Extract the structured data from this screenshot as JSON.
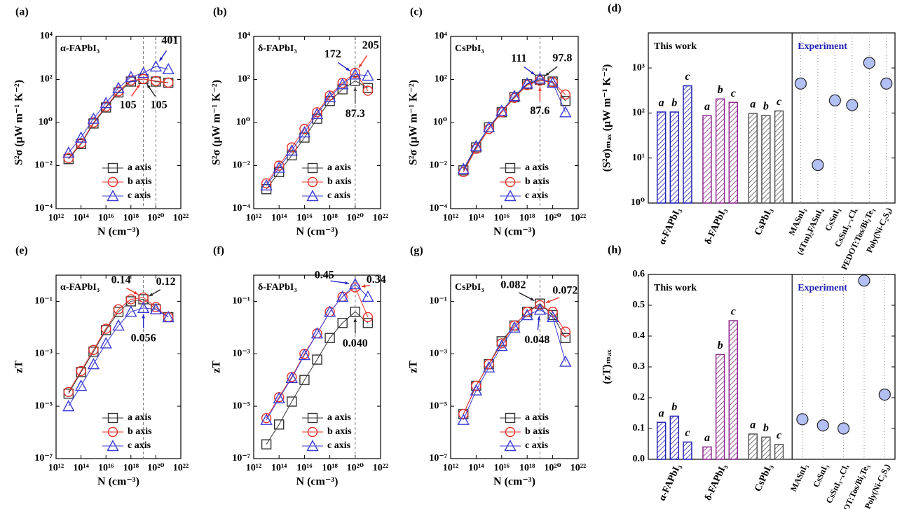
{
  "chart_data": [
    {
      "type": "line",
      "panel": "(a)",
      "label": "α-FAPbI₃",
      "xlabel": "N (cm⁻³)",
      "ylabel": "S²σ (μW m⁻¹ K⁻²)",
      "log_x": true,
      "log_y": true,
      "xlim": [
        1000000000000.0,
        1e+22
      ],
      "xticks": [
        {
          "value": 1000000000000.0,
          "label": "10¹²"
        },
        {
          "value": 100000000000000.0,
          "label": "10¹⁴"
        },
        {
          "value": 1e+16,
          "label": "10¹⁶"
        },
        {
          "value": 1e+18,
          "label": "10¹⁸"
        },
        {
          "value": 1e+20,
          "label": "10²⁰"
        },
        {
          "value": 1e+22,
          "label": "10²²"
        }
      ],
      "ylim": [
        0.0001,
        10000.0
      ],
      "yticks": [
        {
          "value": 0.0001,
          "label": "10⁻⁴"
        },
        {
          "value": 0.01,
          "label": "10⁻²"
        },
        {
          "value": 1,
          "label": "10⁰"
        },
        {
          "value": 100,
          "label": "10²"
        },
        {
          "value": 10000.0,
          "label": "10⁴"
        }
      ],
      "x": [
        10000000000000.0,
        100000000000000.0,
        1000000000000000.0,
        1e+16,
        1e+17,
        1e+18,
        1e+19,
        1e+20,
        1e+21
      ],
      "series": [
        {
          "name": "a axis",
          "color": "#333333",
          "marker": "square",
          "values": [
            0.02,
            0.1,
            0.9,
            5,
            25,
            80,
            105,
            80,
            70
          ]
        },
        {
          "name": "b axis",
          "color": "#e8322a",
          "marker": "circle",
          "values": [
            0.022,
            0.11,
            1.0,
            5.5,
            28,
            90,
            105,
            85,
            72
          ]
        },
        {
          "name": "c axis",
          "color": "#3b3bd6",
          "marker": "triangle",
          "values": [
            0.04,
            0.2,
            1.5,
            8,
            40,
            130,
            200,
            401,
            300
          ]
        }
      ],
      "vlines": [
        1e+19,
        1e+20
      ],
      "legend": "lower right",
      "annotations": [
        {
          "label": "105",
          "series": 1,
          "index": 6,
          "color": "#e8322a"
        },
        {
          "label": "105",
          "series": 0,
          "index": 6,
          "color": "#222222"
        },
        {
          "label": "401",
          "series": 2,
          "index": 7,
          "color": "#2525c8"
        }
      ]
    },
    {
      "type": "line",
      "panel": "(b)",
      "label": "δ-FAPbI₃",
      "xlabel": "N (cm⁻³)",
      "ylabel": "S²σ (μW m⁻¹ K⁻²)",
      "log_x": true,
      "log_y": true,
      "xlim": [
        1000000000000.0,
        1e+22
      ],
      "xticks": [
        {
          "value": 1000000000000.0,
          "label": "10¹²"
        },
        {
          "value": 100000000000000.0,
          "label": "10¹⁴"
        },
        {
          "value": 1e+16,
          "label": "10¹⁶"
        },
        {
          "value": 1e+18,
          "label": "10¹⁸"
        },
        {
          "value": 1e+20,
          "label": "10²⁰"
        },
        {
          "value": 1e+22,
          "label": "10²²"
        }
      ],
      "ylim": [
        0.0001,
        10000.0
      ],
      "yticks": [
        {
          "value": 0.0001,
          "label": "10⁻⁴"
        },
        {
          "value": 0.01,
          "label": "10⁻²"
        },
        {
          "value": 1,
          "label": "10⁰"
        },
        {
          "value": 100,
          "label": "10²"
        },
        {
          "value": 10000.0,
          "label": "10⁴"
        }
      ],
      "x": [
        10000000000000.0,
        100000000000000.0,
        1000000000000000.0,
        1e+16,
        1e+17,
        1e+18,
        1e+19,
        1e+20,
        1e+21
      ],
      "series": [
        {
          "name": "a axis",
          "color": "#333333",
          "marker": "square",
          "values": [
            0.0008,
            0.005,
            0.03,
            0.2,
            1.5,
            10,
            35,
            87.3,
            40
          ]
        },
        {
          "name": "b axis",
          "color": "#e8322a",
          "marker": "circle",
          "values": [
            0.0015,
            0.01,
            0.07,
            0.5,
            3,
            18,
            70,
            205,
            30
          ]
        },
        {
          "name": "c axis",
          "color": "#3b3bd6",
          "marker": "triangle",
          "values": [
            0.0012,
            0.008,
            0.05,
            0.35,
            2.5,
            15,
            60,
            172,
            150
          ]
        }
      ],
      "vlines": [
        1e+20
      ],
      "legend": "lower right",
      "annotations": [
        {
          "label": "172",
          "series": 2,
          "index": 7,
          "color": "#2525c8"
        },
        {
          "label": "205",
          "series": 1,
          "index": 7,
          "color": "#e8322a"
        },
        {
          "label": "87.3",
          "series": 0,
          "index": 7,
          "color": "#444444"
        }
      ]
    },
    {
      "type": "line",
      "panel": "(c)",
      "label": "CsPbI₃",
      "xlabel": "N (cm⁻³)",
      "ylabel": "S²σ (μW m⁻¹ K⁻²)",
      "log_x": true,
      "log_y": true,
      "xlim": [
        1000000000000.0,
        1e+22
      ],
      "xticks": [
        {
          "value": 1000000000000.0,
          "label": "10¹²"
        },
        {
          "value": 100000000000000.0,
          "label": "10¹⁴"
        },
        {
          "value": 1e+16,
          "label": "10¹⁶"
        },
        {
          "value": 1e+18,
          "label": "10¹⁸"
        },
        {
          "value": 1e+20,
          "label": "10²⁰"
        },
        {
          "value": 1e+22,
          "label": "10²²"
        }
      ],
      "ylim": [
        0.0001,
        10000.0
      ],
      "yticks": [
        {
          "value": 0.0001,
          "label": "10⁻⁴"
        },
        {
          "value": 0.01,
          "label": "10⁻²"
        },
        {
          "value": 1,
          "label": "10⁰"
        },
        {
          "value": 100,
          "label": "10²"
        },
        {
          "value": 10000.0,
          "label": "10⁴"
        }
      ],
      "x": [
        10000000000000.0,
        100000000000000.0,
        1000000000000000.0,
        1e+16,
        1e+17,
        1e+18,
        1e+19,
        1e+20,
        1e+21
      ],
      "series": [
        {
          "name": "a axis",
          "color": "#333333",
          "marker": "square",
          "values": [
            0.006,
            0.07,
            0.6,
            3,
            15,
            60,
            97.8,
            80,
            10
          ]
        },
        {
          "name": "b axis",
          "color": "#e8322a",
          "marker": "circle",
          "values": [
            0.005,
            0.06,
            0.5,
            3,
            14,
            55,
            87.6,
            75,
            20
          ]
        },
        {
          "name": "c axis",
          "color": "#3b3bd6",
          "marker": "triangle",
          "values": [
            0.007,
            0.08,
            0.6,
            3.5,
            17,
            65,
            111,
            70,
            3
          ]
        }
      ],
      "vlines": [
        1e+19
      ],
      "legend": "lower right",
      "annotations": [
        {
          "label": "111",
          "series": 2,
          "index": 6,
          "color": "#2525c8"
        },
        {
          "label": "97.8",
          "series": 0,
          "index": 6,
          "color": "#222222"
        },
        {
          "label": "87.6",
          "series": 1,
          "index": 6,
          "color": "#e8322a"
        }
      ]
    },
    {
      "type": "bar",
      "panel": "(d)",
      "ylabel": "(S²σ)ₘₐₓ (μW m⁻¹ K⁻²)",
      "log_y": true,
      "ylim": [
        1,
        6000
      ],
      "yticks": [
        {
          "value": 1,
          "label": "10⁰"
        },
        {
          "value": 10,
          "label": "10¹"
        },
        {
          "value": 100,
          "label": "10²"
        },
        {
          "value": 1000,
          "label": "10³"
        }
      ],
      "sections": [
        "This work",
        "Experiment"
      ],
      "groups": [
        {
          "name": "α-FAPbI₃",
          "color": "#2323b5",
          "categories": [
            "a",
            "b",
            "c"
          ],
          "values": [
            105,
            105,
            401
          ]
        },
        {
          "name": "δ-FAPbI₃",
          "color": "#8e2a8e",
          "categories": [
            "a",
            "b",
            "c"
          ],
          "values": [
            87.3,
            205,
            172
          ]
        },
        {
          "name": "CsPbI₃",
          "color": "#555555",
          "categories": [
            "a",
            "b",
            "c"
          ],
          "values": [
            97.8,
            87.6,
            111
          ]
        }
      ],
      "experiment": {
        "color": "#b3c0f3",
        "categories": [
          "MASnI₃",
          "(4Tm)₂FASnI₄",
          "CsSnI₃",
          "CsSnI₃₋ₓClₓ",
          "PEDOT:Tos/Bi₂Te₃",
          "Poly(Ni-C₂S₄)"
        ],
        "values": [
          450,
          7,
          190,
          150,
          1300,
          450
        ]
      }
    },
    {
      "type": "line",
      "panel": "(e)",
      "label": "α-FAPbI₃",
      "xlabel": "N (cm⁻³)",
      "ylabel": "zT",
      "log_x": true,
      "log_y": true,
      "xlim": [
        1000000000000.0,
        1e+22
      ],
      "xticks": [
        {
          "value": 1000000000000.0,
          "label": "10¹²"
        },
        {
          "value": 100000000000000.0,
          "label": "10¹⁴"
        },
        {
          "value": 1e+16,
          "label": "10¹⁶"
        },
        {
          "value": 1e+18,
          "label": "10¹⁸"
        },
        {
          "value": 1e+20,
          "label": "10²⁰"
        },
        {
          "value": 1e+22,
          "label": "10²²"
        }
      ],
      "ylim": [
        1e-07,
        1
      ],
      "yticks": [
        {
          "value": 1e-07,
          "label": "10⁻⁷"
        },
        {
          "value": 1e-05,
          "label": "10⁻⁵"
        },
        {
          "value": 0.001,
          "label": "10⁻³"
        },
        {
          "value": 0.1,
          "label": "10⁻¹"
        }
      ],
      "x": [
        10000000000000.0,
        100000000000000.0,
        1000000000000000.0,
        1e+16,
        1e+17,
        1e+18,
        1e+19,
        1e+20,
        1e+21
      ],
      "series": [
        {
          "name": "a axis",
          "color": "#333333",
          "marker": "square",
          "values": [
            3e-05,
            0.0002,
            0.0012,
            0.008,
            0.04,
            0.1,
            0.12,
            0.05,
            0.025
          ]
        },
        {
          "name": "b axis",
          "color": "#e8322a",
          "marker": "circle",
          "values": [
            3.5e-05,
            0.00022,
            0.0014,
            0.009,
            0.05,
            0.12,
            0.14,
            0.06,
            0.025
          ]
        },
        {
          "name": "c axis",
          "color": "#3b3bd6",
          "marker": "triangle",
          "values": [
            1e-05,
            6e-05,
            0.0004,
            0.0025,
            0.012,
            0.04,
            0.056,
            0.05,
            0.025
          ]
        }
      ],
      "vlines": [
        1e+19
      ],
      "legend": "lower right",
      "annotations": [
        {
          "label": "0.14",
          "series": 1,
          "index": 6,
          "color": "#e8322a"
        },
        {
          "label": "0.12",
          "series": 0,
          "index": 6,
          "color": "#222222"
        },
        {
          "label": "0.056",
          "series": 2,
          "index": 6,
          "color": "#2525c8"
        }
      ]
    },
    {
      "type": "line",
      "panel": "(f)",
      "label": "δ-FAPbI₃",
      "xlabel": "N (cm⁻³)",
      "ylabel": "zT",
      "log_x": true,
      "log_y": true,
      "xlim": [
        1000000000000.0,
        1e+22
      ],
      "xticks": [
        {
          "value": 1000000000000.0,
          "label": "10¹²"
        },
        {
          "value": 100000000000000.0,
          "label": "10¹⁴"
        },
        {
          "value": 1e+16,
          "label": "10¹⁶"
        },
        {
          "value": 1e+18,
          "label": "10¹⁸"
        },
        {
          "value": 1e+20,
          "label": "10²⁰"
        },
        {
          "value": 1e+22,
          "label": "10²²"
        }
      ],
      "ylim": [
        1e-07,
        1
      ],
      "yticks": [
        {
          "value": 1e-07,
          "label": "10⁻⁷"
        },
        {
          "value": 1e-05,
          "label": "10⁻⁵"
        },
        {
          "value": 0.001,
          "label": "10⁻³"
        },
        {
          "value": 0.1,
          "label": "10⁻¹"
        }
      ],
      "x": [
        10000000000000.0,
        100000000000000.0,
        1000000000000000.0,
        1e+16,
        1e+17,
        1e+18,
        1e+19,
        1e+20,
        1e+21
      ],
      "series": [
        {
          "name": "a axis",
          "color": "#333333",
          "marker": "square",
          "values": [
            3.5e-07,
            2e-06,
            1.5e-05,
            0.0001,
            0.0006,
            0.004,
            0.015,
            0.04,
            0.015
          ]
        },
        {
          "name": "b axis",
          "color": "#e8322a",
          "marker": "circle",
          "values": [
            3.5e-06,
            2.2e-05,
            0.00013,
            0.001,
            0.006,
            0.04,
            0.15,
            0.34,
            0.025
          ]
        },
        {
          "name": "c axis",
          "color": "#3b3bd6",
          "marker": "triangle",
          "values": [
            3e-06,
            2e-05,
            0.00012,
            0.0009,
            0.006,
            0.04,
            0.15,
            0.45,
            0.15
          ]
        }
      ],
      "vlines": [
        1e+20
      ],
      "legend": "lower right",
      "annotations": [
        {
          "label": "0.45",
          "series": 2,
          "index": 7,
          "color": "#2525c8"
        },
        {
          "label": "0.34",
          "series": 1,
          "index": 7,
          "color": "#e8322a"
        },
        {
          "label": "0.040",
          "series": 0,
          "index": 7,
          "color": "#222222"
        }
      ]
    },
    {
      "type": "line",
      "panel": "(g)",
      "label": "CsPbI₃",
      "xlabel": "N (cm⁻³)",
      "ylabel": "zT",
      "log_x": true,
      "log_y": true,
      "xlim": [
        1000000000000.0,
        1e+22
      ],
      "xticks": [
        {
          "value": 1000000000000.0,
          "label": "10¹²"
        },
        {
          "value": 100000000000000.0,
          "label": "10¹⁴"
        },
        {
          "value": 1e+16,
          "label": "10¹⁶"
        },
        {
          "value": 1e+18,
          "label": "10¹⁸"
        },
        {
          "value": 1e+20,
          "label": "10²⁰"
        },
        {
          "value": 1e+22,
          "label": "10²²"
        }
      ],
      "ylim": [
        1e-07,
        1
      ],
      "yticks": [
        {
          "value": 1e-07,
          "label": "10⁻⁷"
        },
        {
          "value": 1e-05,
          "label": "10⁻⁵"
        },
        {
          "value": 0.001,
          "label": "10⁻³"
        },
        {
          "value": 0.1,
          "label": "10⁻¹"
        }
      ],
      "x": [
        10000000000000.0,
        100000000000000.0,
        1000000000000000.0,
        1e+16,
        1e+17,
        1e+18,
        1e+19,
        1e+20,
        1e+21
      ],
      "series": [
        {
          "name": "a axis",
          "color": "#333333",
          "marker": "square",
          "values": [
            5e-06,
            6e-05,
            0.0004,
            0.003,
            0.012,
            0.04,
            0.082,
            0.03,
            0.004
          ]
        },
        {
          "name": "b axis",
          "color": "#e8322a",
          "marker": "circle",
          "values": [
            5e-06,
            6e-05,
            0.0004,
            0.0025,
            0.012,
            0.04,
            0.072,
            0.04,
            0.007
          ]
        },
        {
          "name": "c axis",
          "color": "#3b3bd6",
          "marker": "triangle",
          "values": [
            3e-06,
            4e-05,
            0.0003,
            0.002,
            0.01,
            0.03,
            0.048,
            0.025,
            0.0005
          ]
        }
      ],
      "vlines": [
        1e+19
      ],
      "legend": "lower right",
      "annotations": [
        {
          "label": "0.082",
          "series": 0,
          "index": 6,
          "color": "#222222"
        },
        {
          "label": "0.072",
          "series": 1,
          "index": 6,
          "color": "#e8322a"
        },
        {
          "label": "0.048",
          "series": 2,
          "index": 6,
          "color": "#2525c8"
        }
      ]
    },
    {
      "type": "bar",
      "panel": "(h)",
      "ylabel": "(zT)ₘₐₓ",
      "log_y": false,
      "ylim": [
        0,
        0.6
      ],
      "yticks": [
        {
          "value": 0,
          "label": "0.0"
        },
        0.1,
        0.2,
        0.3,
        0.4,
        0.5,
        0.6
      ],
      "sections": [
        "This work",
        "Experiment"
      ],
      "groups": [
        {
          "name": "α-FAPbI₃",
          "color": "#2323b5",
          "categories": [
            "a",
            "b",
            "c"
          ],
          "values": [
            0.12,
            0.14,
            0.056
          ]
        },
        {
          "name": "δ-FAPbI₃",
          "color": "#8e2a8e",
          "categories": [
            "a",
            "b",
            "c"
          ],
          "values": [
            0.04,
            0.34,
            0.45
          ]
        },
        {
          "name": "CsPbI₃",
          "color": "#555555",
          "categories": [
            "a",
            "b",
            "c"
          ],
          "values": [
            0.082,
            0.072,
            0.048
          ]
        }
      ],
      "experiment": {
        "color": "#b3c0f3",
        "categories": [
          "MASnI₃",
          "CsSnI₃",
          "CsSnI₃₋ₓClₓ",
          "PEDOT:Tos/Bi₂Te₃",
          "Poly(Ni-C₂S₄)"
        ],
        "values": [
          0.13,
          0.11,
          0.1,
          0.58,
          0.21
        ]
      }
    }
  ]
}
